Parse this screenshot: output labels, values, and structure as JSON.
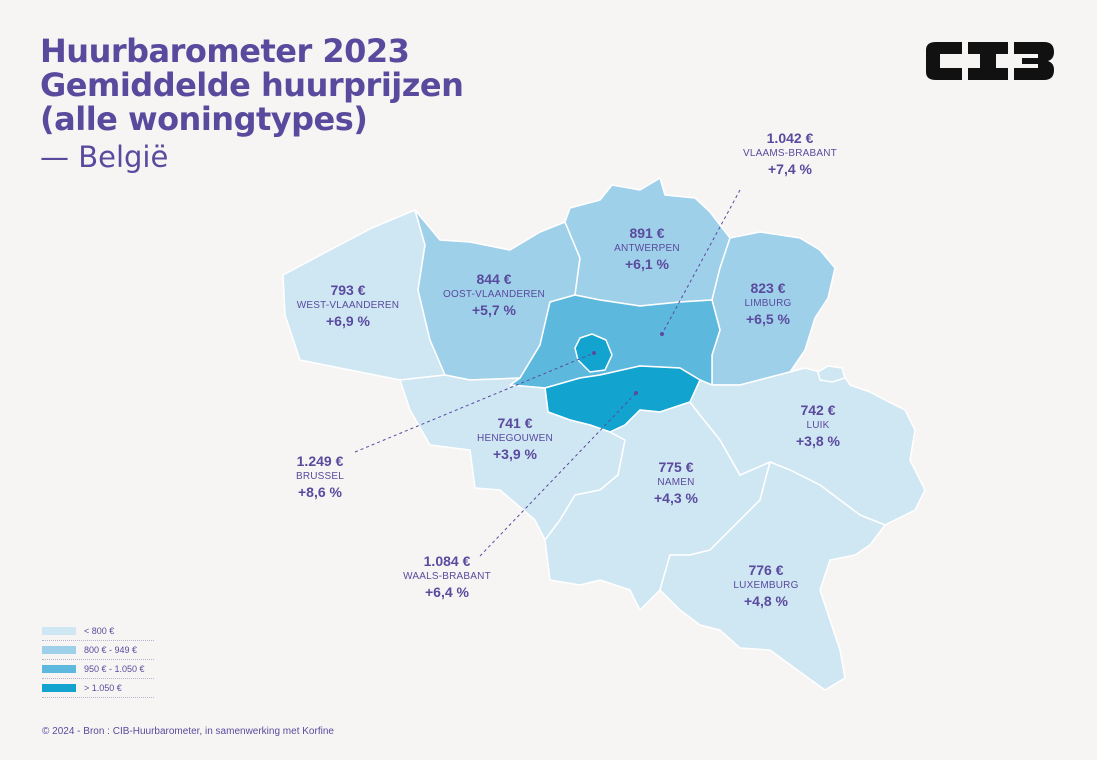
{
  "header": {
    "title_lines": [
      "Huurbarometer 2023",
      "Gemiddelde huurprijzen",
      "(alle woningtypes)"
    ],
    "subtitle": "— België"
  },
  "logo": {
    "text": "CIB",
    "icon": "cib-logo-icon"
  },
  "regions": {
    "west_vlaanderen": {
      "price": "793 €",
      "name": "WEST-VLAANDEREN",
      "change": "+6,9 %",
      "value": 793,
      "change_pct": 6.9,
      "color": "#cfe6f3"
    },
    "oost_vlaanderen": {
      "price": "844 €",
      "name": "OOST-VLAANDEREN",
      "change": "+5,7 %",
      "value": 844,
      "change_pct": 5.7,
      "color": "#9fd0ea"
    },
    "antwerpen": {
      "price": "891 €",
      "name": "ANTWERPEN",
      "change": "+6,1 %",
      "value": 891,
      "change_pct": 6.1,
      "color": "#9fd0ea"
    },
    "limburg": {
      "price": "823 €",
      "name": "LIMBURG",
      "change": "+6,5 %",
      "value": 823,
      "change_pct": 6.5,
      "color": "#9fd0ea"
    },
    "vlaams_brabant": {
      "price": "1.042 €",
      "name": "VLAAMS-BRABANT",
      "change": "+7,4 %",
      "value": 1042,
      "change_pct": 7.4,
      "color": "#5db8de"
    },
    "brussel": {
      "price": "1.249 €",
      "name": "BRUSSEL",
      "change": "+8,6 %",
      "value": 1249,
      "change_pct": 8.6,
      "color": "#12a3cf"
    },
    "waals_brabant": {
      "price": "1.084 €",
      "name": "WAALS-BRABANT",
      "change": "+6,4 %",
      "value": 1084,
      "change_pct": 6.4,
      "color": "#12a3cf"
    },
    "henegouwen": {
      "price": "741 €",
      "name": "HENEGOUWEN",
      "change": "+3,9 %",
      "value": 741,
      "change_pct": 3.9,
      "color": "#cfe6f3"
    },
    "namen": {
      "price": "775 €",
      "name": "NAMEN",
      "change": "+4,3 %",
      "value": 775,
      "change_pct": 4.3,
      "color": "#cfe6f3"
    },
    "luik": {
      "price": "742 €",
      "name": "LUIK",
      "change": "+3,8 %",
      "value": 742,
      "change_pct": 3.8,
      "color": "#cfe6f3"
    },
    "luxemburg": {
      "price": "776 €",
      "name": "LUXEMBURG",
      "change": "+4,8 %",
      "value": 776,
      "change_pct": 4.8,
      "color": "#cfe6f3"
    }
  },
  "legend": [
    {
      "label": "< 800 €",
      "color": "#cfe6f3"
    },
    {
      "label": "800 € - 949 €",
      "color": "#9fd0ea"
    },
    {
      "label": "950 € - 1.050 €",
      "color": "#5db8de"
    },
    {
      "label": "> 1.050 €",
      "color": "#12a3cf"
    }
  ],
  "footer": "© 2024 - Bron : CIB-Huurbarometer, in samenwerking met Korfine"
}
